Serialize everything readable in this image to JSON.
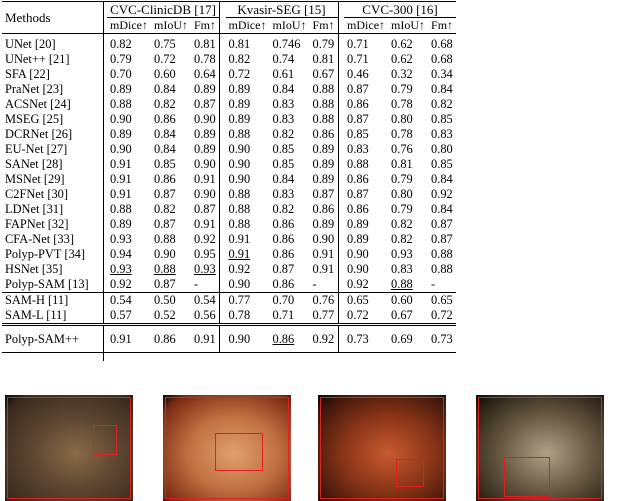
{
  "header": {
    "methods_label": "Methods",
    "datasets": [
      "CVC-ClinicDB [17]",
      "Kvasir-SEG [15]",
      "CVC-300 [16]"
    ],
    "metrics": [
      "mDice↑",
      "mIoU↑",
      "Fm↑"
    ]
  },
  "rows": [
    {
      "name": "UNet [20]",
      "v": [
        "0.82",
        "0.75",
        "0.81",
        "0.81",
        "0.746",
        "0.79",
        "0.71",
        "0.62",
        "0.68"
      ]
    },
    {
      "name": "UNet++ [21]",
      "v": [
        "0.79",
        "0.72",
        "0.78",
        "0.82",
        "0.74",
        "0.81",
        "0.71",
        "0.62",
        "0.68"
      ]
    },
    {
      "name": "SFA [22]",
      "v": [
        "0.70",
        "0.60",
        "0.64",
        "0.72",
        "0.61",
        "0.67",
        "0.46",
        "0.32",
        "0.34"
      ]
    },
    {
      "name": "PraNet [23]",
      "v": [
        "0.89",
        "0.84",
        "0.89",
        "0.89",
        "0.84",
        "0.88",
        "0.87",
        "0.79",
        "0.84"
      ]
    },
    {
      "name": "ACSNet [24]",
      "v": [
        "0.88",
        "0.82",
        "0.87",
        "0.89",
        "0.83",
        "0.88",
        "0.86",
        "0.78",
        "0.82"
      ]
    },
    {
      "name": "MSEG [25]",
      "v": [
        "0.90",
        "0.86",
        "0.90",
        "0.89",
        "0.83",
        "0.88",
        "0.87",
        "0.80",
        "0.85"
      ]
    },
    {
      "name": "DCRNet [26]",
      "v": [
        "0.89",
        "0.84",
        "0.89",
        "0.88",
        "0.82",
        "0.86",
        "0.85",
        "0.78",
        "0.83"
      ]
    },
    {
      "name": "EU-Net [27]",
      "v": [
        "0.90",
        "0.84",
        "0.89",
        "0.90",
        "0.85",
        "0.89",
        "0.83",
        "0.76",
        "0.80"
      ]
    },
    {
      "name": "SANet [28]",
      "v": [
        "0.91",
        "0.85",
        "0.90",
        "0.90",
        "0.85",
        "0.89",
        "0.88",
        "0.81",
        "0.85"
      ]
    },
    {
      "name": "MSNet [29]",
      "v": [
        "0.91",
        "0.86",
        "0.91",
        "0.90",
        "0.84",
        "0.89",
        "0.86",
        "0.79",
        "0.84"
      ]
    },
    {
      "name": "C2FNet [30]",
      "v": [
        "0.91",
        "0.87",
        "0.90",
        "0.88",
        "0.83",
        "0.87",
        "0.87",
        "0.80",
        "0.92"
      ]
    },
    {
      "name": "LDNet [31]",
      "v": [
        "0.88",
        "0.82",
        "0.87",
        "0.88",
        "0.82",
        "0.86",
        "0.86",
        "0.79",
        "0.84"
      ]
    },
    {
      "name": "FAPNet [32]",
      "v": [
        "0.89",
        "0.87",
        "0.91",
        "0.88",
        "0.86",
        "0.89",
        "0.89",
        "0.82",
        "0.87"
      ]
    },
    {
      "name": "CFA-Net [33]",
      "v": [
        "0.93",
        "0.88",
        "0.92",
        "0.91",
        "0.86",
        "0.90",
        "0.89",
        "0.82",
        "0.87"
      ]
    },
    {
      "name": "Polyp-PVT [34]",
      "v": [
        "0.94",
        "0.90",
        "0.95",
        "0.91",
        "0.86",
        "0.91",
        "0.90",
        "0.93",
        "0.88"
      ]
    },
    {
      "name": "HSNet [35]",
      "v": [
        "0.93",
        "0.88",
        "0.93",
        "0.92",
        "0.87",
        "0.91",
        "0.90",
        "0.83",
        "0.88"
      ]
    },
    {
      "name": "Polyp-SAM [13]",
      "v": [
        "0.92",
        "0.87",
        "-",
        "0.90",
        "0.86",
        "-",
        "0.92",
        "0.88",
        "-"
      ]
    }
  ],
  "sam_rows": [
    {
      "name": "SAM-H [11]",
      "v": [
        "0.54",
        "0.50",
        "0.54",
        "0.77",
        "0.70",
        "0.76",
        "0.65",
        "0.60",
        "0.65"
      ]
    },
    {
      "name": "SAM-L [11]",
      "v": [
        "0.57",
        "0.52",
        "0.56",
        "0.78",
        "0.71",
        "0.77",
        "0.72",
        "0.67",
        "0.72"
      ]
    }
  ],
  "ours": {
    "name": "Polyp-SAM++",
    "v": [
      "0.91",
      "0.86",
      "0.91",
      "0.90",
      "0.86",
      "0.92",
      "0.73",
      "0.69",
      "0.73"
    ]
  },
  "styles": {
    "bold": [
      [
        14,
        0
      ],
      [
        14,
        1
      ],
      [
        14,
        2
      ],
      [
        15,
        3
      ],
      [
        15,
        4
      ],
      [
        16,
        6
      ],
      [
        14,
        7
      ],
      [
        14,
        8
      ],
      [
        15,
        8
      ]
    ],
    "underline": [
      [
        15,
        0
      ],
      [
        15,
        1
      ],
      [
        15,
        2
      ],
      [
        14,
        3
      ],
      [
        16,
        7
      ]
    ],
    "ours_bold": [
      5
    ],
    "ours_underline": [
      4
    ]
  },
  "thumbnails": [
    {
      "name": "polyp-image-1",
      "colors": [
        "#3a2a1c",
        "#8a6a48",
        "#5a4530"
      ]
    },
    {
      "name": "polyp-image-2",
      "colors": [
        "#7a2a12",
        "#e0a070",
        "#c07040"
      ]
    },
    {
      "name": "polyp-image-3",
      "colors": [
        "#3a1408",
        "#c85a30",
        "#8a3518"
      ]
    },
    {
      "name": "polyp-image-4",
      "colors": [
        "#2a2216",
        "#b0a088",
        "#6a5a44"
      ]
    }
  ]
}
